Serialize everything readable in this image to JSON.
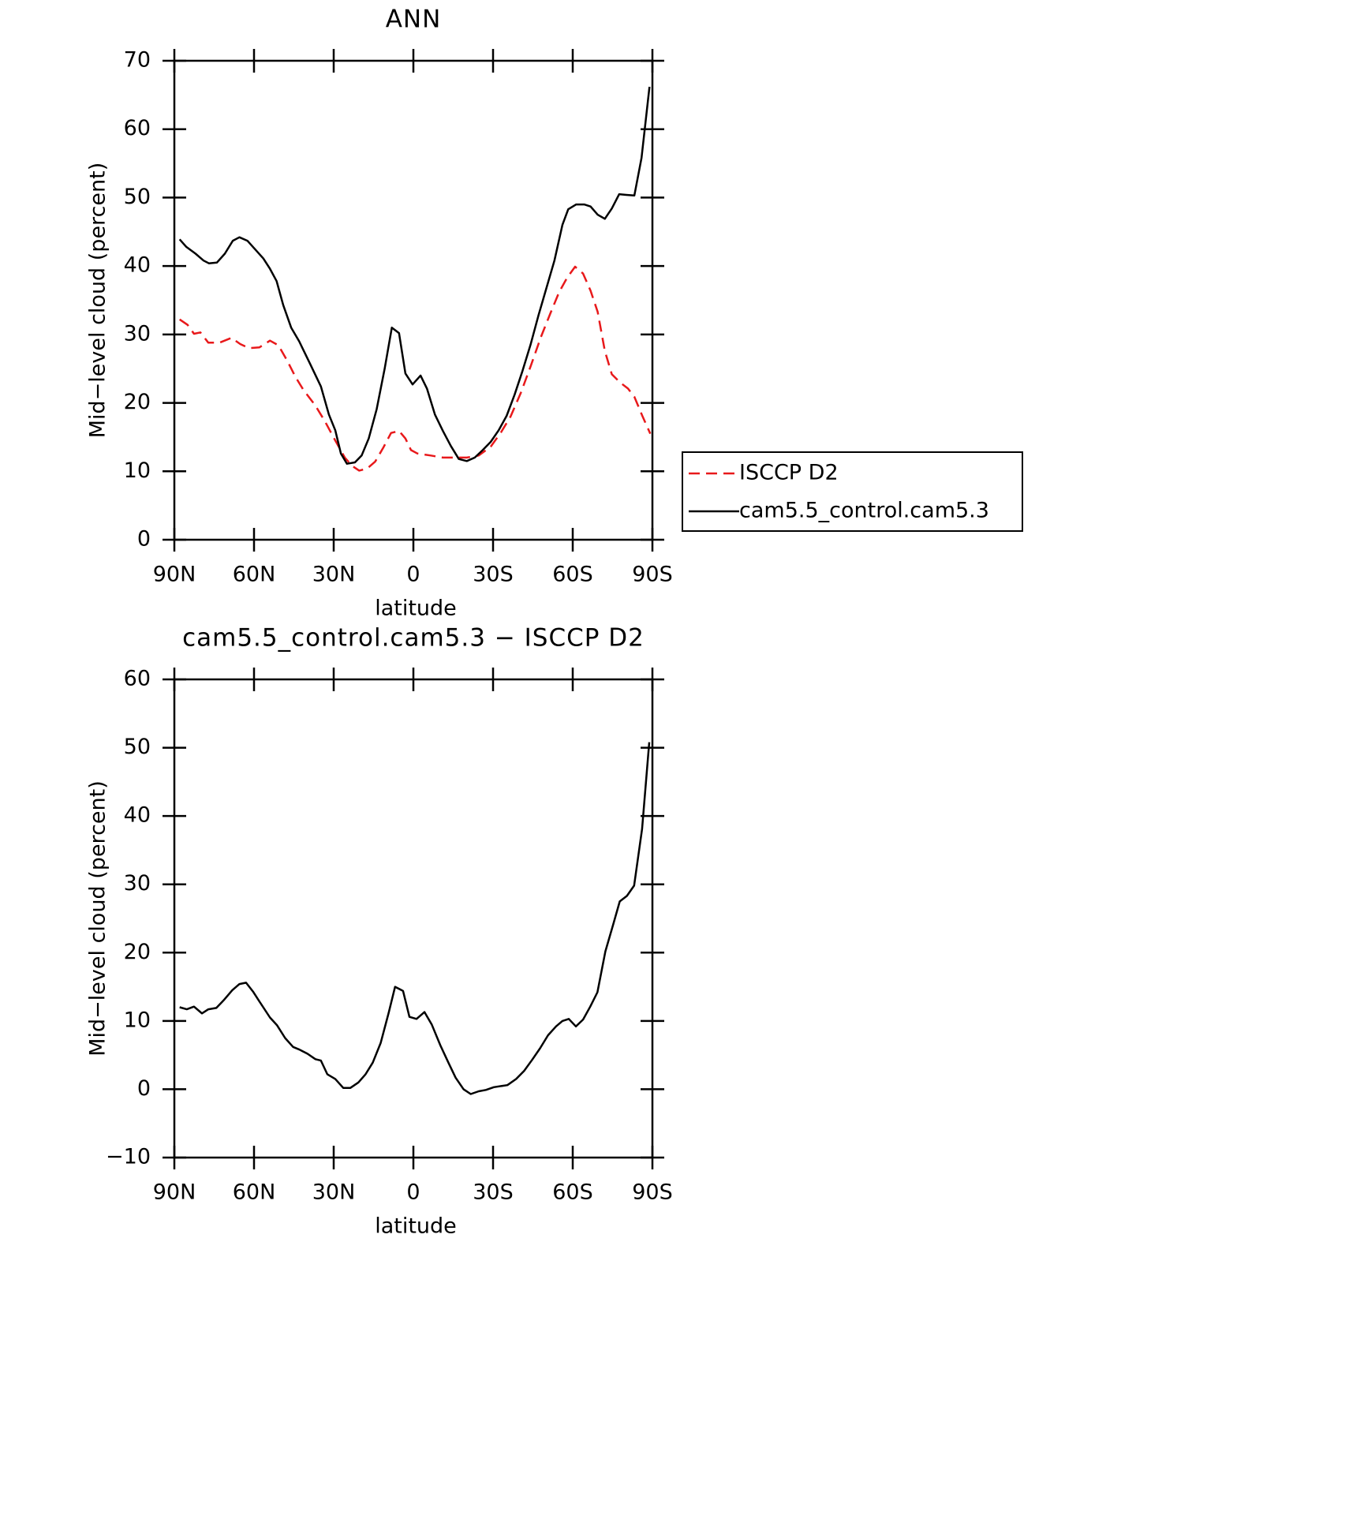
{
  "chart_data": [
    {
      "type": "line",
      "title": "ANN",
      "xlabel": "latitude",
      "ylabel": "Mid−level cloud (percent)",
      "xlim": [
        90,
        -90
      ],
      "ylim": [
        0,
        70
      ],
      "xticks": [
        {
          "value": 90,
          "label": "90N"
        },
        {
          "value": 60,
          "label": "60N"
        },
        {
          "value": 30,
          "label": "30N"
        },
        0,
        {
          "value": -30,
          "label": "30S"
        },
        {
          "value": -60,
          "label": "60S"
        },
        {
          "value": -90,
          "label": "90S"
        }
      ],
      "yticks": [
        0,
        10,
        20,
        30,
        40,
        50,
        60,
        70
      ],
      "legend": "right",
      "series": [
        {
          "name": "ISCCP D2",
          "color": "#e8191b",
          "dashed": true,
          "x": [
            88,
            85,
            82.6,
            80.2,
            77.2,
            73,
            68.5,
            65.2,
            61.9,
            58,
            54,
            50.8,
            47.4,
            44.4,
            41.4,
            36.9,
            33.3,
            29.4,
            25.8,
            23.1,
            20.4,
            17.4,
            14.4,
            11.4,
            8.4,
            5.4,
            3,
            0.9,
            -1.5,
            -6.6,
            -11.1,
            -20.1,
            -24.6,
            -29.1,
            -33,
            -36.6,
            -40.5,
            -44.1,
            -48,
            -51.6,
            -54.9,
            -57.9,
            -60.9,
            -63.9,
            -66.7,
            -69.4,
            -72.1,
            -74.7,
            -77.8,
            -80.8,
            -83.2,
            -86.2,
            -89.2
          ],
          "values": [
            32.2,
            31.4,
            30.1,
            30.3,
            28.8,
            28.8,
            29.5,
            28.6,
            28.0,
            28.1,
            29.1,
            28.4,
            26.1,
            23.8,
            21.9,
            19.6,
            17.3,
            14.5,
            12.0,
            10.8,
            10.1,
            10.4,
            11.4,
            13.4,
            15.6,
            15.9,
            14.8,
            13.1,
            12.6,
            12.3,
            12.0,
            12.0,
            12.3,
            13.6,
            15.7,
            18.0,
            21.5,
            25.3,
            29.6,
            33.1,
            36.2,
            38.3,
            39.9,
            38.9,
            36.4,
            33.3,
            27.6,
            24.2,
            23.0,
            22.1,
            20.9,
            18.1,
            15.5
          ]
        },
        {
          "name": "cam5.5_control.cam5.3",
          "color": "#000000",
          "dashed": false,
          "x": [
            88,
            85.5,
            82,
            79,
            77,
            74,
            71,
            68,
            65.5,
            62.5,
            59.5,
            56.5,
            54,
            51.5,
            49,
            46,
            43,
            39,
            34.8,
            31.8,
            29.4,
            27.3,
            25,
            22,
            19.5,
            16.8,
            13.8,
            10.8,
            8.1,
            5.4,
            3,
            0.3,
            -2.7,
            -5.1,
            -8.1,
            -11.1,
            -14.1,
            -17.1,
            -20.1,
            -23.1,
            -26.1,
            -29.1,
            -32.1,
            -35.1,
            -38.1,
            -41.1,
            -44.1,
            -47.1,
            -50.1,
            -53.1,
            -56.1,
            -58.3,
            -61.3,
            -64.3,
            -66.7,
            -69.4,
            -72.1,
            -74.7,
            -77.5,
            -80.2,
            -83.2,
            -85.9,
            -88.9
          ],
          "values": [
            43.9,
            42.8,
            41.8,
            40.8,
            40.4,
            40.5,
            41.8,
            43.7,
            44.2,
            43.7,
            42.4,
            41.1,
            39.6,
            37.8,
            34.3,
            31.0,
            29.0,
            25.8,
            22.4,
            18.3,
            16.0,
            12.6,
            11.1,
            11.3,
            12.3,
            14.8,
            19.1,
            25.0,
            31.0,
            30.2,
            24.3,
            22.7,
            24.0,
            22.1,
            18.3,
            15.9,
            13.7,
            11.8,
            11.5,
            12.0,
            13.1,
            14.3,
            16.0,
            18.1,
            21.2,
            24.7,
            28.5,
            32.8,
            36.8,
            40.8,
            46.0,
            48.3,
            49.0,
            49.0,
            48.7,
            47.5,
            46.9,
            48.4,
            50.5,
            50.4,
            50.3,
            55.8,
            66.2
          ]
        }
      ]
    },
    {
      "type": "line",
      "title": "cam5.5_control.cam5.3 − ISCCP D2",
      "xlabel": "latitude",
      "ylabel": "Mid−level cloud (percent)",
      "xlim": [
        90,
        -90
      ],
      "ylim": [
        -10,
        60
      ],
      "xticks": [
        {
          "value": 90,
          "label": "90N"
        },
        {
          "value": 60,
          "label": "60N"
        },
        {
          "value": 30,
          "label": "30N"
        },
        0,
        {
          "value": -30,
          "label": "30S"
        },
        {
          "value": -60,
          "label": "60S"
        },
        {
          "value": -90,
          "label": "90S"
        }
      ],
      "yticks": [
        {
          "value": -10,
          "label": "−10"
        },
        0,
        10,
        20,
        30,
        40,
        50,
        60
      ],
      "series": [
        {
          "color": "#000000",
          "dashed": false,
          "x": [
            88,
            85.3,
            82.6,
            79.6,
            77.2,
            74.2,
            71.5,
            68.2,
            65.5,
            63,
            60.4,
            57.7,
            54,
            51.4,
            48.3,
            45.3,
            42.9,
            39.9,
            36.9,
            34.8,
            32.4,
            29.4,
            26.4,
            23.7,
            20.7,
            18,
            15.3,
            12.3,
            9.3,
            6.9,
            3.9,
            1.5,
            -1.2,
            -4.2,
            -6.9,
            -10.2,
            -13.2,
            -15.9,
            -18.9,
            -21.6,
            -24.6,
            -27.3,
            -30.3,
            -35.4,
            -38.7,
            -41.7,
            -44.7,
            -47.7,
            -50.7,
            -53.7,
            -56.1,
            -58.5,
            -61.2,
            -63.9,
            -66.6,
            -69.3,
            -72.3,
            -75.3,
            -77.7,
            -80.4,
            -83.1,
            -86.1,
            -88.8
          ],
          "values": [
            12.0,
            11.7,
            12.1,
            11.1,
            11.7,
            11.9,
            13.0,
            14.5,
            15.4,
            15.6,
            14.3,
            12.7,
            10.5,
            9.4,
            7.5,
            6.2,
            5.8,
            5.2,
            4.4,
            4.2,
            2.2,
            1.5,
            0.2,
            0.2,
            1.0,
            2.2,
            3.9,
            6.8,
            11.2,
            15.0,
            14.4,
            10.6,
            10.3,
            11.3,
            9.5,
            6.4,
            3.9,
            1.7,
            0,
            -0.7,
            -0.3,
            -0.1,
            0.3,
            0.6,
            1.5,
            2.7,
            4.3,
            6.0,
            7.9,
            9.2,
            10.0,
            10.3,
            9.2,
            10.2,
            12.1,
            14.2,
            20.2,
            24.2,
            27.5,
            28.3,
            29.8,
            38.1,
            50.8
          ]
        }
      ]
    }
  ]
}
